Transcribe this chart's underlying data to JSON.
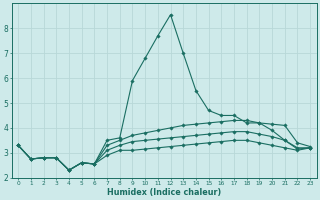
{
  "xlabel": "Humidex (Indice chaleur)",
  "background_color": "#ceeaea",
  "grid_color": "#b8d8d8",
  "line_color": "#1a6e62",
  "hours": [
    0,
    1,
    2,
    3,
    4,
    5,
    6,
    7,
    8,
    9,
    10,
    11,
    12,
    13,
    14,
    15,
    16,
    17,
    18,
    19,
    20,
    21,
    22,
    23
  ],
  "line_max": [
    3.3,
    2.75,
    2.8,
    2.8,
    2.3,
    2.6,
    2.55,
    3.5,
    3.6,
    5.9,
    6.8,
    7.7,
    8.55,
    7.0,
    5.5,
    4.7,
    4.5,
    4.5,
    4.2,
    4.2,
    3.9,
    3.5,
    3.2,
    3.2
  ],
  "line_upper": [
    3.3,
    2.75,
    2.8,
    2.8,
    2.3,
    2.6,
    2.55,
    3.3,
    3.5,
    3.7,
    3.8,
    3.9,
    4.0,
    4.1,
    4.15,
    4.2,
    4.25,
    4.3,
    4.3,
    4.2,
    4.15,
    4.1,
    3.4,
    3.25
  ],
  "line_lower": [
    3.3,
    2.75,
    2.8,
    2.8,
    2.3,
    2.6,
    2.55,
    3.1,
    3.3,
    3.45,
    3.5,
    3.55,
    3.6,
    3.65,
    3.7,
    3.75,
    3.8,
    3.85,
    3.85,
    3.75,
    3.65,
    3.5,
    3.15,
    3.2
  ],
  "line_min": [
    3.3,
    2.75,
    2.8,
    2.8,
    2.3,
    2.6,
    2.55,
    2.9,
    3.1,
    3.1,
    3.15,
    3.2,
    3.25,
    3.3,
    3.35,
    3.4,
    3.45,
    3.5,
    3.5,
    3.4,
    3.3,
    3.2,
    3.1,
    3.2
  ],
  "ylim": [
    2.0,
    9.0
  ],
  "yticks": [
    2,
    3,
    4,
    5,
    6,
    7,
    8
  ],
  "xlim": [
    -0.5,
    23.5
  ]
}
